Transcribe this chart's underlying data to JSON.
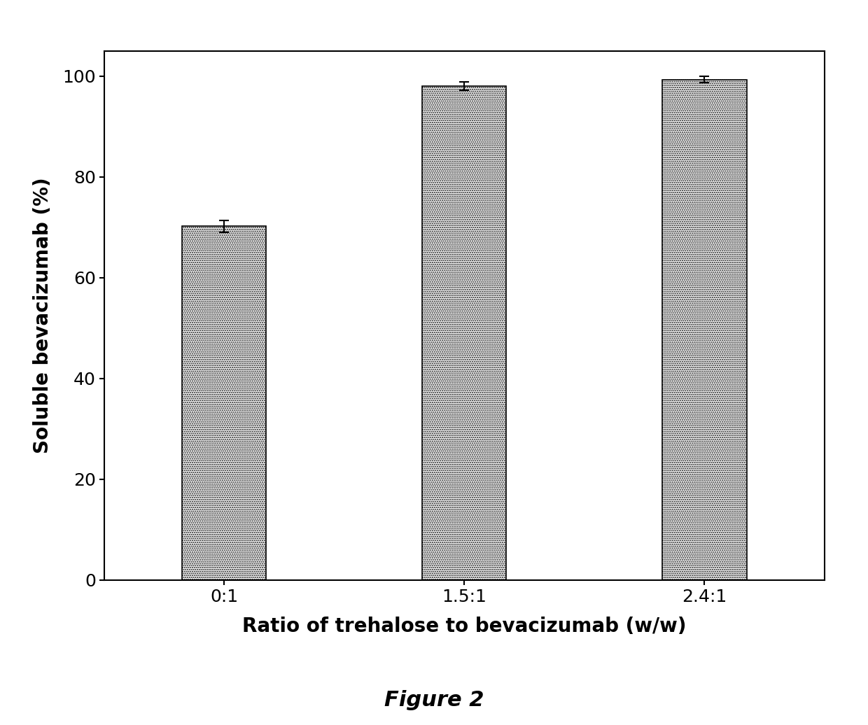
{
  "categories": [
    "0:1",
    "1.5:1",
    "2.4:1"
  ],
  "values": [
    70.2,
    98.0,
    99.3
  ],
  "errors": [
    1.2,
    0.8,
    0.6
  ],
  "ylabel": "Soluble bevacizumab (%)",
  "xlabel": "Ratio of trehalose to bevacizumab (w/w)",
  "caption": "Figure 2",
  "ylim": [
    0,
    105
  ],
  "yticks": [
    0,
    20,
    40,
    60,
    80,
    100
  ],
  "background_color": "#ffffff",
  "bar_width": 0.35,
  "label_fontsize": 20,
  "tick_fontsize": 18,
  "caption_fontsize": 22
}
